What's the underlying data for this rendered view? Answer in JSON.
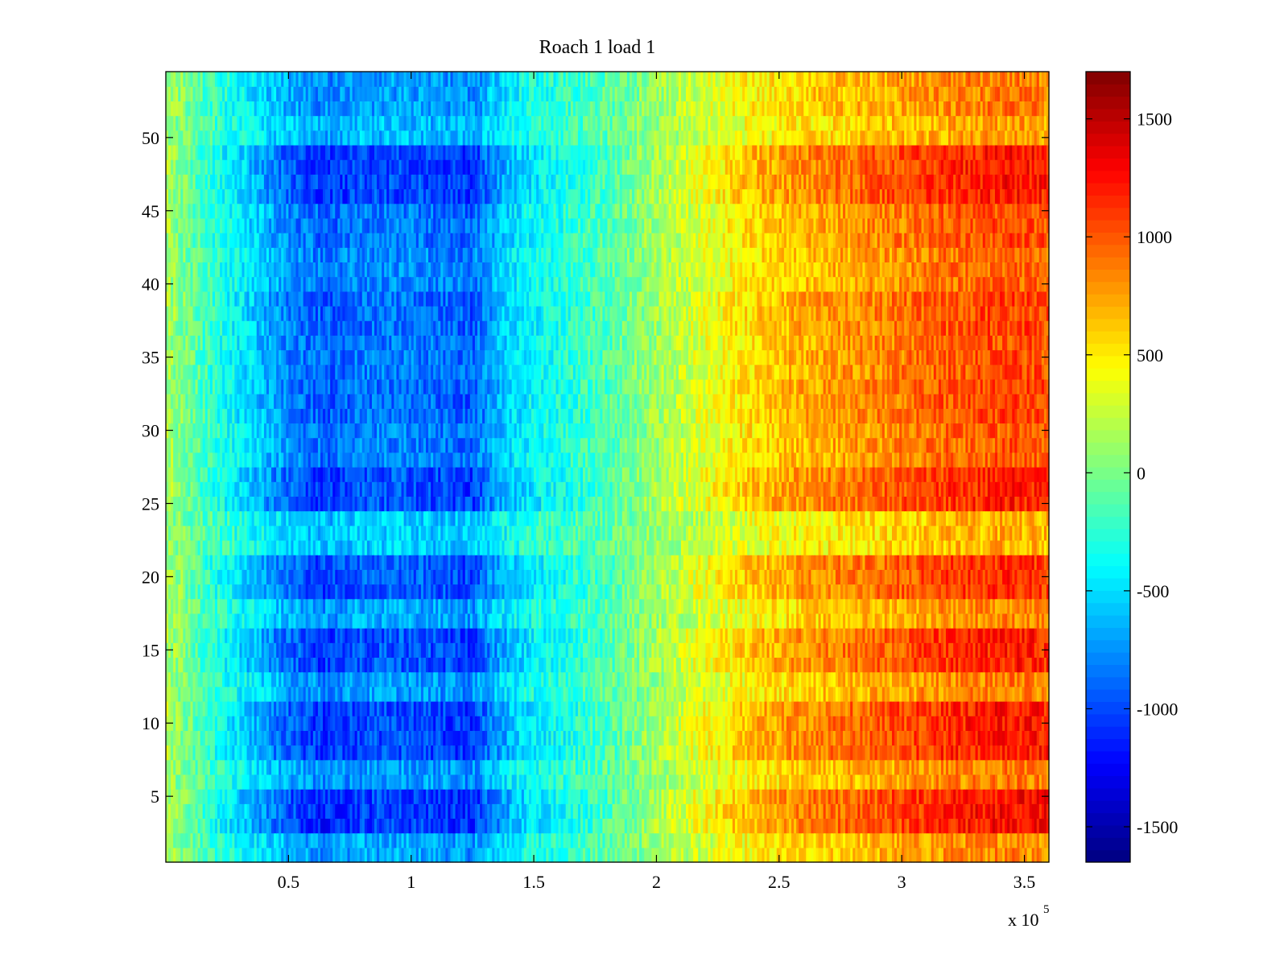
{
  "chart_data": {
    "type": "heatmap",
    "title": "Roach 1 load 1",
    "xlabel": "",
    "ylabel": "",
    "x_exponent_label": {
      "base": "x 10",
      "power": "5"
    },
    "xlim": [
      0,
      3.6
    ],
    "ylim": [
      0.5,
      54.5
    ],
    "rows": 54,
    "x_ticks": [
      0.5,
      1,
      1.5,
      2,
      2.5,
      3,
      3.5
    ],
    "x_tick_labels": [
      "0.5",
      "1",
      "1.5",
      "2",
      "2.5",
      "3",
      "3.5"
    ],
    "y_ticks": [
      5,
      10,
      15,
      20,
      25,
      30,
      35,
      40,
      45,
      50
    ],
    "y_tick_labels": [
      "5",
      "10",
      "15",
      "20",
      "25",
      "30",
      "35",
      "40",
      "45",
      "50"
    ],
    "colorbar": {
      "colormap": "jet",
      "min": -1650,
      "max": 1700,
      "ticks": [
        -1500,
        -1000,
        -500,
        0,
        500,
        1000,
        1500
      ],
      "tick_labels": [
        "-1500",
        "-1000",
        "-500",
        "0",
        "500",
        "1000",
        "1500"
      ]
    },
    "column_profile": {
      "x": [
        0,
        0.2,
        0.35,
        0.5,
        0.65,
        0.8,
        1.0,
        1.15,
        1.25,
        1.32,
        1.45,
        1.6,
        1.8,
        2.0,
        2.2,
        2.4,
        2.6,
        2.8,
        3.0,
        3.15,
        3.3,
        3.45,
        3.6
      ],
      "value": [
        200,
        -300,
        -600,
        -900,
        -1050,
        -950,
        -950,
        -1000,
        -1050,
        -800,
        -500,
        -350,
        -150,
        150,
        400,
        650,
        800,
        900,
        1000,
        1100,
        1150,
        1200,
        1150
      ]
    },
    "row_strength_notes": "row_strength: relative contrast per row band (1 = strong stripe, lower = weaker)",
    "row_bands": [
      {
        "rows": [
          1,
          2
        ],
        "strength": 0.55
      },
      {
        "rows": [
          3,
          5
        ],
        "strength": 1.1
      },
      {
        "rows": [
          6,
          7
        ],
        "strength": 0.6
      },
      {
        "rows": [
          8,
          11
        ],
        "strength": 1.05
      },
      {
        "rows": [
          12,
          13
        ],
        "strength": 0.6
      },
      {
        "rows": [
          14,
          16
        ],
        "strength": 1.0
      },
      {
        "rows": [
          17,
          18
        ],
        "strength": 0.55
      },
      {
        "rows": [
          19,
          21
        ],
        "strength": 0.95
      },
      {
        "rows": [
          22,
          24
        ],
        "strength": 0.35
      },
      {
        "rows": [
          25,
          27
        ],
        "strength": 1.0
      },
      {
        "rows": [
          28,
          30
        ],
        "strength": 0.75
      },
      {
        "rows": [
          31,
          33
        ],
        "strength": 0.85
      },
      {
        "rows": [
          34,
          36
        ],
        "strength": 0.8
      },
      {
        "rows": [
          37,
          39
        ],
        "strength": 0.85
      },
      {
        "rows": [
          40,
          42
        ],
        "strength": 0.7
      },
      {
        "rows": [
          43,
          45
        ],
        "strength": 0.8
      },
      {
        "rows": [
          46,
          49
        ],
        "strength": 1.05
      },
      {
        "rows": [
          50,
          51
        ],
        "strength": 0.45
      },
      {
        "rows": [
          52,
          54
        ],
        "strength": 0.6
      }
    ]
  }
}
